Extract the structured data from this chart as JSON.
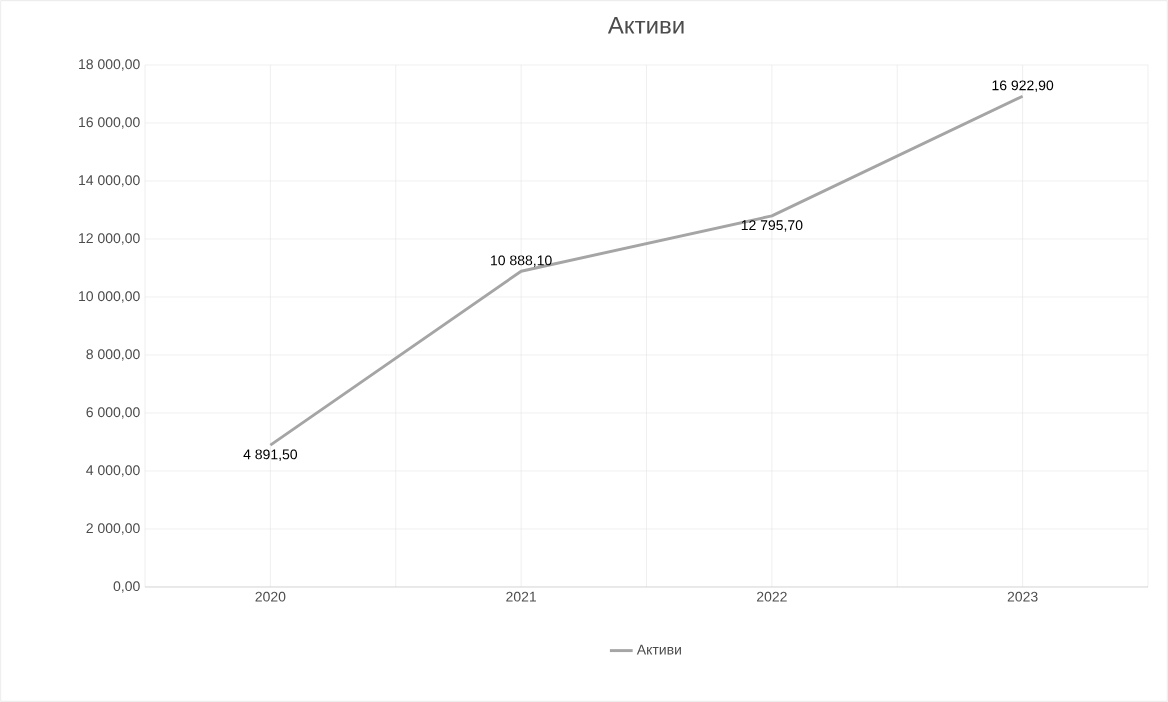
{
  "chart_data": {
    "type": "line",
    "title": "Активи",
    "categories": [
      "2020",
      "2021",
      "2022",
      "2023"
    ],
    "series": [
      {
        "name": "Активи",
        "color": "#a5a5a5",
        "values": [
          4891.5,
          10888.1,
          12795.7,
          16922.9
        ],
        "value_labels": [
          "4 891,50",
          "10 888,10",
          "12 795,70",
          "16 922,90"
        ]
      }
    ],
    "ylim": [
      0,
      18000
    ],
    "yticks": [
      {
        "value": 0,
        "label": "0,00"
      },
      {
        "value": 2000,
        "label": "2 000,00"
      },
      {
        "value": 4000,
        "label": "4 000,00"
      },
      {
        "value": 6000,
        "label": "6 000,00"
      },
      {
        "value": 8000,
        "label": "8 000,00"
      },
      {
        "value": 10000,
        "label": "10 000,00"
      },
      {
        "value": 12000,
        "label": "12 000,00"
      },
      {
        "value": 14000,
        "label": "14 000,00"
      },
      {
        "value": 16000,
        "label": "16 000,00"
      },
      {
        "value": 18000,
        "label": "18 000,00"
      }
    ],
    "grid": true,
    "legend": "bottom",
    "marker": "none",
    "line_style": "solid"
  }
}
